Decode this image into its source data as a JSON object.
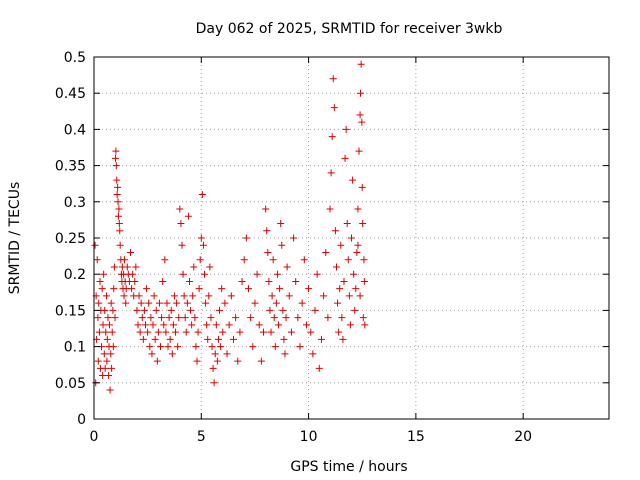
{
  "chart_data": {
    "type": "scatter",
    "title": "Day 062 of 2025, SRMTID for receiver 3wkb",
    "xlabel": "GPS time / hours",
    "ylabel": "SRMTID / TECUs",
    "xlim": [
      0,
      24
    ],
    "ylim": [
      0,
      0.5
    ],
    "xticks": [
      0,
      5,
      10,
      15,
      20
    ],
    "xtick_labels": [
      "0",
      "5",
      "10",
      "15",
      "20"
    ],
    "yticks": [
      0,
      0.05,
      0.1,
      0.15,
      0.2,
      0.25,
      0.3,
      0.35,
      0.4,
      0.45,
      0.5
    ],
    "ytick_labels": [
      "0",
      "0.05",
      "0.1",
      "0.15",
      "0.2",
      "0.25",
      "0.3",
      "0.35",
      "0.4",
      "0.45",
      "0.5"
    ],
    "grid": true,
    "marker": "+",
    "marker_color": "#e00000",
    "series": [
      {
        "name": "SRMTID",
        "points": [
          [
            0.05,
            0.24
          ],
          [
            0.08,
            0.05
          ],
          [
            0.1,
            0.17
          ],
          [
            0.12,
            0.11
          ],
          [
            0.15,
            0.22
          ],
          [
            0.18,
            0.14
          ],
          [
            0.2,
            0.08
          ],
          [
            0.22,
            0.16
          ],
          [
            0.25,
            0.12
          ],
          [
            0.28,
            0.19
          ],
          [
            0.3,
            0.07
          ],
          [
            0.32,
            0.15
          ],
          [
            0.35,
            0.1
          ],
          [
            0.38,
            0.18
          ],
          [
            0.4,
            0.06
          ],
          [
            0.42,
            0.13
          ],
          [
            0.45,
            0.2
          ],
          [
            0.48,
            0.09
          ],
          [
            0.5,
            0.15
          ],
          [
            0.52,
            0.07
          ],
          [
            0.55,
            0.12
          ],
          [
            0.58,
            0.17
          ],
          [
            0.6,
            0.08
          ],
          [
            0.62,
            0.11
          ],
          [
            0.65,
            0.14
          ],
          [
            0.68,
            0.06
          ],
          [
            0.7,
            0.1
          ],
          [
            0.72,
            0.13
          ],
          [
            0.75,
            0.04
          ],
          [
            0.78,
            0.09
          ],
          [
            0.8,
            0.16
          ],
          [
            0.82,
            0.07
          ],
          [
            0.85,
            0.12
          ],
          [
            0.88,
            0.15
          ],
          [
            0.9,
            0.1
          ],
          [
            0.92,
            0.18
          ],
          [
            0.95,
            0.21
          ],
          [
            0.98,
            0.14
          ],
          [
            1.0,
            0.36
          ],
          [
            1.02,
            0.37
          ],
          [
            1.04,
            0.35
          ],
          [
            1.06,
            0.33
          ],
          [
            1.08,
            0.31
          ],
          [
            1.1,
            0.32
          ],
          [
            1.12,
            0.3
          ],
          [
            1.14,
            0.28
          ],
          [
            1.16,
            0.29
          ],
          [
            1.18,
            0.27
          ],
          [
            1.2,
            0.26
          ],
          [
            1.22,
            0.24
          ],
          [
            1.25,
            0.22
          ],
          [
            1.28,
            0.2
          ],
          [
            1.3,
            0.19
          ],
          [
            1.32,
            0.21
          ],
          [
            1.35,
            0.18
          ],
          [
            1.38,
            0.2
          ],
          [
            1.4,
            0.17
          ],
          [
            1.42,
            0.22
          ],
          [
            1.45,
            0.19
          ],
          [
            1.48,
            0.16
          ],
          [
            1.5,
            0.18
          ],
          [
            1.55,
            0.21
          ],
          [
            1.6,
            0.2
          ],
          [
            1.65,
            0.19
          ],
          [
            1.7,
            0.23
          ],
          [
            1.75,
            0.18
          ],
          [
            1.8,
            0.2
          ],
          [
            1.85,
            0.17
          ],
          [
            1.9,
            0.19
          ],
          [
            1.95,
            0.21
          ],
          [
            2.0,
            0.15
          ],
          [
            2.05,
            0.13
          ],
          [
            2.1,
            0.17
          ],
          [
            2.15,
            0.12
          ],
          [
            2.2,
            0.16
          ],
          [
            2.25,
            0.14
          ],
          [
            2.3,
            0.11
          ],
          [
            2.35,
            0.15
          ],
          [
            2.4,
            0.13
          ],
          [
            2.45,
            0.18
          ],
          [
            2.5,
            0.12
          ],
          [
            2.55,
            0.16
          ],
          [
            2.6,
            0.1
          ],
          [
            2.65,
            0.14
          ],
          [
            2.7,
            0.09
          ],
          [
            2.75,
            0.13
          ],
          [
            2.8,
            0.17
          ],
          [
            2.85,
            0.11
          ],
          [
            2.9,
            0.15
          ],
          [
            2.95,
            0.08
          ],
          [
            3.0,
            0.12
          ],
          [
            3.05,
            0.16
          ],
          [
            3.1,
            0.1
          ],
          [
            3.15,
            0.14
          ],
          [
            3.2,
            0.19
          ],
          [
            3.25,
            0.13
          ],
          [
            3.3,
            0.22
          ],
          [
            3.35,
            0.12
          ],
          [
            3.4,
            0.16
          ],
          [
            3.45,
            0.1
          ],
          [
            3.5,
            0.14
          ],
          [
            3.55,
            0.11
          ],
          [
            3.6,
            0.15
          ],
          [
            3.65,
            0.09
          ],
          [
            3.7,
            0.13
          ],
          [
            3.75,
            0.17
          ],
          [
            3.8,
            0.12
          ],
          [
            3.85,
            0.16
          ],
          [
            3.9,
            0.1
          ],
          [
            3.95,
            0.14
          ],
          [
            4.0,
            0.29
          ],
          [
            4.05,
            0.27
          ],
          [
            4.1,
            0.24
          ],
          [
            4.15,
            0.2
          ],
          [
            4.2,
            0.17
          ],
          [
            4.25,
            0.14
          ],
          [
            4.3,
            0.12
          ],
          [
            4.35,
            0.16
          ],
          [
            4.4,
            0.28
          ],
          [
            4.45,
            0.19
          ],
          [
            4.5,
            0.15
          ],
          [
            4.55,
            0.13
          ],
          [
            4.6,
            0.17
          ],
          [
            4.65,
            0.21
          ],
          [
            4.7,
            0.14
          ],
          [
            4.75,
            0.1
          ],
          [
            4.8,
            0.08
          ],
          [
            4.85,
            0.12
          ],
          [
            4.9,
            0.18
          ],
          [
            4.95,
            0.22
          ],
          [
            5.0,
            0.25
          ],
          [
            5.05,
            0.31
          ],
          [
            5.1,
            0.24
          ],
          [
            5.15,
            0.2
          ],
          [
            5.2,
            0.16
          ],
          [
            5.25,
            0.13
          ],
          [
            5.3,
            0.11
          ],
          [
            5.35,
            0.17
          ],
          [
            5.4,
            0.21
          ],
          [
            5.45,
            0.14
          ],
          [
            5.5,
            0.1
          ],
          [
            5.55,
            0.07
          ],
          [
            5.6,
            0.05
          ],
          [
            5.65,
            0.09
          ],
          [
            5.7,
            0.13
          ],
          [
            5.75,
            0.08
          ],
          [
            5.8,
            0.11
          ],
          [
            5.85,
            0.15
          ],
          [
            5.9,
            0.1
          ],
          [
            5.95,
            0.18
          ],
          [
            6.0,
            0.12
          ],
          [
            6.1,
            0.16
          ],
          [
            6.2,
            0.09
          ],
          [
            6.3,
            0.13
          ],
          [
            6.4,
            0.17
          ],
          [
            6.5,
            0.11
          ],
          [
            6.6,
            0.14
          ],
          [
            6.7,
            0.08
          ],
          [
            6.8,
            0.12
          ],
          [
            6.9,
            0.19
          ],
          [
            7.0,
            0.22
          ],
          [
            7.1,
            0.25
          ],
          [
            7.2,
            0.18
          ],
          [
            7.3,
            0.14
          ],
          [
            7.4,
            0.1
          ],
          [
            7.5,
            0.16
          ],
          [
            7.6,
            0.2
          ],
          [
            7.7,
            0.13
          ],
          [
            7.8,
            0.08
          ],
          [
            7.9,
            0.12
          ],
          [
            8.0,
            0.29
          ],
          [
            8.05,
            0.26
          ],
          [
            8.1,
            0.23
          ],
          [
            8.15,
            0.19
          ],
          [
            8.2,
            0.15
          ],
          [
            8.25,
            0.12
          ],
          [
            8.3,
            0.17
          ],
          [
            8.35,
            0.22
          ],
          [
            8.4,
            0.14
          ],
          [
            8.45,
            0.1
          ],
          [
            8.5,
            0.16
          ],
          [
            8.55,
            0.2
          ],
          [
            8.6,
            0.13
          ],
          [
            8.65,
            0.18
          ],
          [
            8.7,
            0.27
          ],
          [
            8.75,
            0.24
          ],
          [
            8.8,
            0.15
          ],
          [
            8.85,
            0.11
          ],
          [
            8.9,
            0.09
          ],
          [
            8.95,
            0.14
          ],
          [
            9.0,
            0.21
          ],
          [
            9.1,
            0.17
          ],
          [
            9.2,
            0.12
          ],
          [
            9.3,
            0.25
          ],
          [
            9.4,
            0.19
          ],
          [
            9.5,
            0.14
          ],
          [
            9.6,
            0.1
          ],
          [
            9.7,
            0.16
          ],
          [
            9.8,
            0.22
          ],
          [
            9.9,
            0.13
          ],
          [
            10.0,
            0.18
          ],
          [
            10.1,
            0.12
          ],
          [
            10.2,
            0.09
          ],
          [
            10.3,
            0.15
          ],
          [
            10.4,
            0.2
          ],
          [
            10.5,
            0.07
          ],
          [
            10.6,
            0.11
          ],
          [
            10.7,
            0.17
          ],
          [
            10.8,
            0.23
          ],
          [
            10.9,
            0.14
          ],
          [
            11.0,
            0.29
          ],
          [
            11.05,
            0.34
          ],
          [
            11.1,
            0.39
          ],
          [
            11.15,
            0.47
          ],
          [
            11.2,
            0.43
          ],
          [
            11.25,
            0.26
          ],
          [
            11.3,
            0.21
          ],
          [
            11.35,
            0.16
          ],
          [
            11.4,
            0.12
          ],
          [
            11.45,
            0.18
          ],
          [
            11.5,
            0.24
          ],
          [
            11.55,
            0.14
          ],
          [
            11.6,
            0.11
          ],
          [
            11.65,
            0.19
          ],
          [
            11.7,
            0.36
          ],
          [
            11.75,
            0.4
          ],
          [
            11.8,
            0.27
          ],
          [
            11.85,
            0.22
          ],
          [
            11.9,
            0.17
          ],
          [
            11.95,
            0.13
          ],
          [
            12.0,
            0.25
          ],
          [
            12.05,
            0.33
          ],
          [
            12.1,
            0.2
          ],
          [
            12.15,
            0.15
          ],
          [
            12.2,
            0.18
          ],
          [
            12.25,
            0.23
          ],
          [
            12.3,
            0.29
          ],
          [
            12.35,
            0.37
          ],
          [
            12.4,
            0.42
          ],
          [
            12.42,
            0.45
          ],
          [
            12.45,
            0.49
          ],
          [
            12.48,
            0.41
          ],
          [
            12.5,
            0.32
          ],
          [
            12.52,
            0.27
          ],
          [
            12.55,
            0.14
          ],
          [
            12.58,
            0.22
          ],
          [
            12.6,
            0.19
          ],
          [
            12.62,
            0.13
          ],
          [
            12.4,
            0.17
          ],
          [
            12.3,
            0.24
          ]
        ]
      }
    ]
  }
}
